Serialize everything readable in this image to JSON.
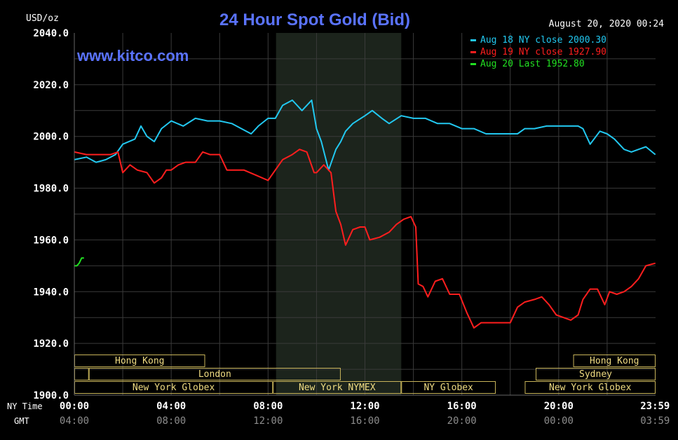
{
  "header": {
    "unit": "USD/oz",
    "title": "24 Hour Spot Gold (Bid)",
    "datetime": "August 20, 2020 00:24",
    "website": "www.kitco.com"
  },
  "colors": {
    "background": "#000000",
    "grid": "#3a3a3a",
    "title": "#5a73ff",
    "text": "#ffffff",
    "gmt_text": "#8c8c8c",
    "shade": "#1c241c",
    "session_border": "#c8b45a",
    "session_text": "#f0dc82"
  },
  "chart_data": {
    "type": "line",
    "title": "24 Hour Spot Gold (Bid)",
    "ylabel": "USD/oz",
    "ylim": [
      1900,
      2040
    ],
    "xlim": [
      0,
      24
    ],
    "grid": true,
    "legend_position": "top-right",
    "y_ticks": [
      "2040.0",
      "2020.0",
      "2000.0",
      "1980.0",
      "1960.0",
      "1940.0",
      "1920.0",
      "1900.0"
    ],
    "x_row_labels": [
      "NY Time",
      "GMT"
    ],
    "x_ticks_ny": [
      "00:00",
      "04:00",
      "08:00",
      "12:00",
      "16:00",
      "20:00",
      "23:59"
    ],
    "x_ticks_gmt": [
      "04:00",
      "08:00",
      "12:00",
      "16:00",
      "20:00",
      "00:00",
      "03:59"
    ],
    "shaded_hours": [
      8.33,
      13.5
    ],
    "series": [
      {
        "name": "Aug 18 NY close 2000.30",
        "color": "#22c8f0",
        "x": [
          0,
          0.5,
          0.9,
          1.3,
          1.7,
          2.0,
          2.5,
          2.75,
          3.0,
          3.3,
          3.6,
          4.0,
          4.5,
          5.0,
          5.5,
          6.0,
          6.5,
          6.9,
          7.3,
          7.6,
          8.0,
          8.3,
          8.6,
          9.0,
          9.4,
          9.6,
          9.8,
          10.0,
          10.2,
          10.5,
          10.8,
          11.0,
          11.2,
          11.5,
          12.0,
          12.3,
          12.7,
          13.0,
          13.5,
          14.0,
          14.5,
          15.0,
          15.5,
          16.0,
          16.5,
          17.0,
          17.5,
          18.0,
          18.3,
          18.6,
          19.0,
          19.5,
          20.0,
          20.5,
          20.8,
          21.0,
          21.3,
          21.7,
          22.0,
          22.3,
          22.7,
          23.0,
          23.3,
          23.6,
          23.99
        ],
        "values": [
          1991,
          1992,
          1990,
          1991,
          1993,
          1997,
          1999,
          2004,
          2000,
          1998,
          2003,
          2006,
          2004,
          2007,
          2006,
          2006,
          2005,
          2003,
          2001,
          2004,
          2007,
          2007,
          2012,
          2014,
          2010,
          2012,
          2014,
          2003,
          1998,
          1987,
          1995,
          1998,
          2002,
          2005,
          2008,
          2010,
          2007,
          2005,
          2008,
          2007,
          2007,
          2005,
          2005,
          2003,
          2003,
          2001,
          2001,
          2001,
          2001,
          2003,
          2003,
          2004,
          2004,
          2004,
          2004,
          2003,
          1997,
          2002,
          2001,
          1999,
          1995,
          1994,
          1995,
          1996,
          1993
        ]
      },
      {
        "name": "Aug 19 NY close 1927.90",
        "color": "#ff1e1e",
        "x": [
          0,
          0.5,
          1.0,
          1.5,
          1.8,
          2.0,
          2.3,
          2.6,
          3.0,
          3.3,
          3.6,
          3.8,
          4.0,
          4.3,
          4.6,
          5.0,
          5.3,
          5.6,
          6.0,
          6.3,
          6.6,
          7.0,
          7.5,
          8.0,
          8.3,
          8.6,
          9.0,
          9.3,
          9.6,
          9.9,
          10.0,
          10.3,
          10.6,
          10.8,
          11.0,
          11.2,
          11.5,
          11.8,
          12.0,
          12.2,
          12.6,
          13.0,
          13.3,
          13.6,
          13.9,
          14.1,
          14.2,
          14.4,
          14.6,
          14.9,
          15.2,
          15.5,
          15.9,
          16.2,
          16.5,
          16.8,
          17.3,
          17.7,
          18.0,
          18.3,
          18.6,
          19.0,
          19.3,
          19.6,
          19.9,
          20.2,
          20.5,
          20.8,
          21.0,
          21.3,
          21.6,
          21.9,
          22.1,
          22.4,
          22.7,
          23.0,
          23.3,
          23.6,
          23.99
        ],
        "values": [
          1994,
          1993,
          1993,
          1993,
          1994,
          1986,
          1989,
          1987,
          1986,
          1982,
          1984,
          1987,
          1987,
          1989,
          1990,
          1990,
          1994,
          1993,
          1993,
          1987,
          1987,
          1987,
          1985,
          1983,
          1987,
          1991,
          1993,
          1995,
          1994,
          1986,
          1986,
          1989,
          1986,
          1971,
          1966,
          1958,
          1964,
          1965,
          1965,
          1960,
          1961,
          1963,
          1966,
          1968,
          1969,
          1965,
          1943,
          1942,
          1938,
          1944,
          1945,
          1939,
          1939,
          1932,
          1926,
          1928,
          1928,
          1928,
          1928,
          1934,
          1936,
          1937,
          1938,
          1935,
          1931,
          1930,
          1929,
          1931,
          1937,
          1941,
          1941,
          1935,
          1940,
          1939,
          1940,
          1942,
          1945,
          1950,
          1951
        ]
      },
      {
        "name": "Aug 20 Last 1952.80",
        "color": "#22e022",
        "x": [
          0,
          0.1,
          0.2,
          0.3,
          0.4
        ],
        "values": [
          1950,
          1950,
          1951,
          1953,
          1953
        ]
      }
    ],
    "sessions": [
      {
        "row": 0,
        "start": 0,
        "end": 5.4,
        "label": "Hong Kong"
      },
      {
        "row": 0,
        "start": 20.6,
        "end": 24,
        "label": "Hong Kong"
      },
      {
        "row": 1,
        "start": 0,
        "end": 0.6,
        "label": ""
      },
      {
        "row": 1,
        "start": 0.6,
        "end": 11.0,
        "label": "London"
      },
      {
        "row": 1,
        "start": 19.05,
        "end": 24,
        "label": "Sydney"
      },
      {
        "row": 2,
        "start": 0,
        "end": 8.2,
        "label": "New York Globex"
      },
      {
        "row": 2,
        "start": 8.2,
        "end": 13.5,
        "label": "New York NYMEX"
      },
      {
        "row": 2,
        "start": 13.5,
        "end": 17.4,
        "label": "NY Globex"
      },
      {
        "row": 2,
        "start": 18.6,
        "end": 24,
        "label": "New York Globex"
      }
    ]
  }
}
